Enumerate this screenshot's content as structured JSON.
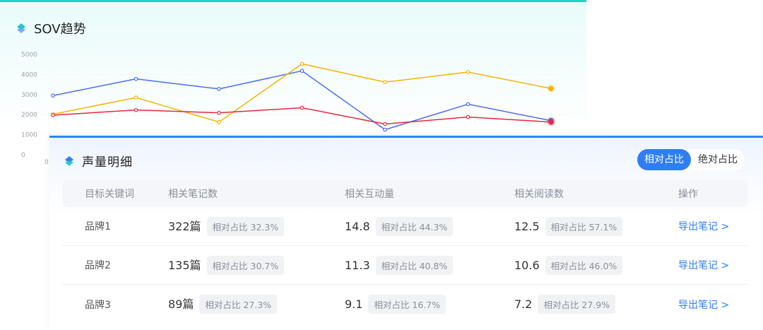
{
  "sov": {
    "title": "SOV趋势",
    "icon": "diamond-icon"
  },
  "chart_data": {
    "type": "line",
    "y_ticks": [
      "5000",
      "4000",
      "3000",
      "2000",
      "1000",
      "0"
    ],
    "x_tick_visible": "0",
    "ylim": [
      0,
      5000
    ],
    "grid": true,
    "series": [
      {
        "color": "#4a6cf7",
        "values": [
          2950,
          3780,
          3280,
          4180,
          1250,
          2520,
          1700
        ]
      },
      {
        "color": "#f5b400",
        "values": [
          2020,
          2850,
          1630,
          4530,
          3620,
          4120,
          3300
        ]
      },
      {
        "color": "#e8283f",
        "values": [
          1970,
          2230,
          2090,
          2340,
          1530,
          1880,
          1630
        ]
      }
    ]
  },
  "volume": {
    "title": "声量明细",
    "toggle": {
      "active": "相对占比",
      "inactive": "绝对占比"
    },
    "headers": [
      "目标关键词",
      "相关笔记数",
      "相关互动量",
      "相关阅读数",
      "操作"
    ],
    "rows": [
      {
        "brand": "品牌1",
        "notes": "322篇",
        "notes_pct": "相对占比 32.3%",
        "interact": "14.8",
        "interact_pct": "相对占比 44.3%",
        "read": "12.5",
        "read_pct": "相对占比 57.1%",
        "action": "导出笔记 >"
      },
      {
        "brand": "品牌2",
        "notes": "135篇",
        "notes_pct": "相对占比 30.7%",
        "interact": "11.3",
        "interact_pct": "相对占比 40.8%",
        "read": "10.6",
        "read_pct": "相对占比 46.0%",
        "action": "导出笔记 >"
      },
      {
        "brand": "品牌3",
        "notes": "89篇",
        "notes_pct": "相对占比 27.3%",
        "interact": "9.1",
        "interact_pct": "相对占比 16.7%",
        "read": "7.2",
        "read_pct": "相对占比 27.9%",
        "action": "导出笔记 >"
      }
    ]
  }
}
